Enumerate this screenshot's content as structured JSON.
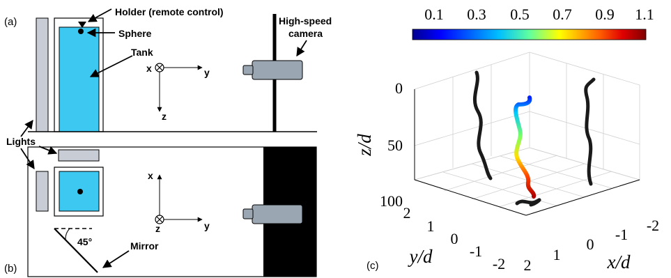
{
  "panels": {
    "a": "(a)",
    "b": "(b)",
    "c": "(c)"
  },
  "labels": {
    "holder": "Holder (remote control)",
    "sphere": "Sphere",
    "tank": "Tank",
    "camera_line1": "High-speed",
    "camera_line2": "camera",
    "lights": "Lights",
    "mirror": "Mirror",
    "angle": "45°"
  },
  "coord_a": {
    "x": "x",
    "y": "y",
    "z": "z"
  },
  "coord_b": {
    "x": "x",
    "y": "y",
    "z": "z"
  },
  "plot3d": {
    "colorbar_ticks": [
      "0.1",
      "0.3",
      "0.5",
      "0.7",
      "0.9",
      "1.1"
    ],
    "colormap": [
      "#00008f",
      "#0000ff",
      "#00bfff",
      "#5fffa0",
      "#ffff00",
      "#ff6000",
      "#e00000",
      "#800000"
    ],
    "z_ticks": [
      "0",
      "50",
      "100"
    ],
    "y_ticks": [
      "2",
      "1",
      "0",
      "-1",
      "-2"
    ],
    "x_ticks": [
      "2",
      "1",
      "0",
      "-1",
      "-2"
    ],
    "zlabel": "z/d",
    "ylabel": "y/d",
    "xlabel": "x/d"
  },
  "colors": {
    "water": "#3cc8f0",
    "light": "#c8ccd4",
    "camera": "#9aa6b2",
    "trajectory_dark": "#1a1a1a"
  }
}
